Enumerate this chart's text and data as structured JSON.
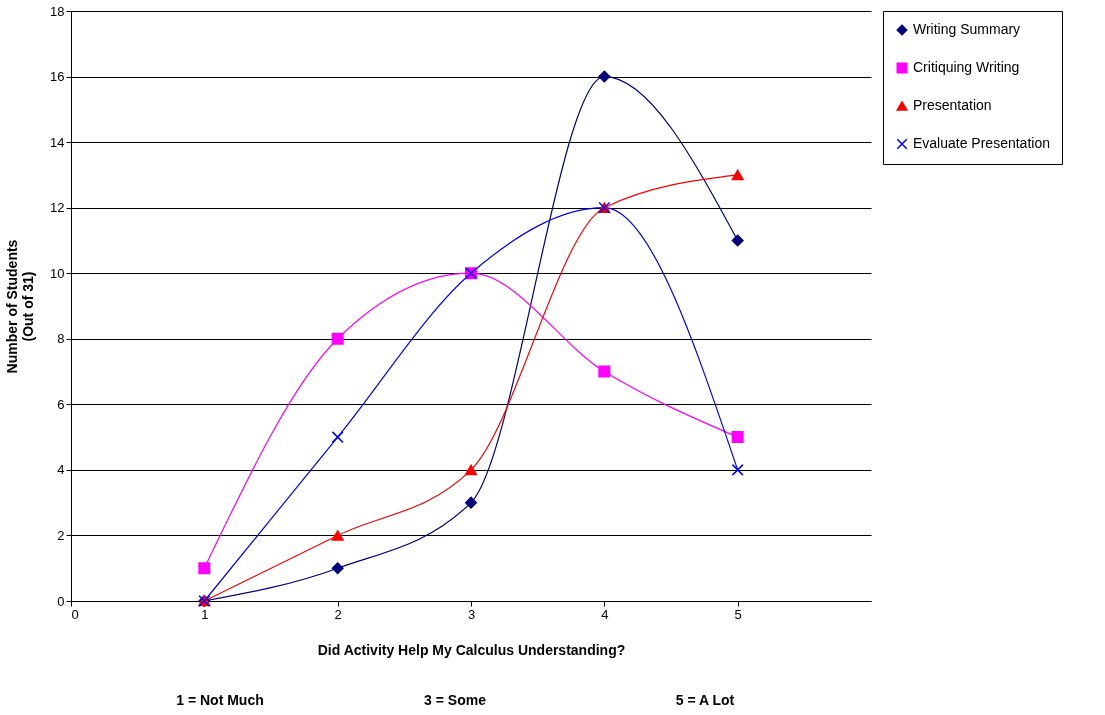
{
  "chart_data": {
    "type": "line",
    "xlabel": "Did Activity Help My Calculus Understanding?",
    "ylabel": "Number of Students (Out of 31)",
    "annotations": [
      "1 = Not Much",
      "3 = Some",
      "5 = A Lot"
    ],
    "x": [
      1,
      2,
      3,
      4,
      5
    ],
    "xlim": [
      0,
      6
    ],
    "xticks": [
      0,
      1,
      2,
      3,
      4,
      5
    ],
    "ylim": [
      0,
      18
    ],
    "yticks": [
      0,
      2,
      4,
      6,
      8,
      10,
      12,
      14,
      16,
      18
    ],
    "grid": "y",
    "legend": "right",
    "series": [
      {
        "name": "Writing Summary",
        "color": "#000080",
        "marker": "diamond",
        "values": [
          0,
          1,
          3,
          16,
          11
        ]
      },
      {
        "name": "Critiquing Writing",
        "color": "#ff00ff",
        "marker": "square",
        "values": [
          1,
          8,
          10,
          7,
          5
        ]
      },
      {
        "name": "Presentation",
        "color": "#ff0000",
        "marker": "triangle",
        "values": [
          0,
          2,
          4,
          12,
          13
        ]
      },
      {
        "name": "Evaluate Presentation",
        "color": "#0000ff",
        "marker": "cross",
        "values": [
          0,
          5,
          10,
          12,
          4
        ]
      }
    ]
  }
}
